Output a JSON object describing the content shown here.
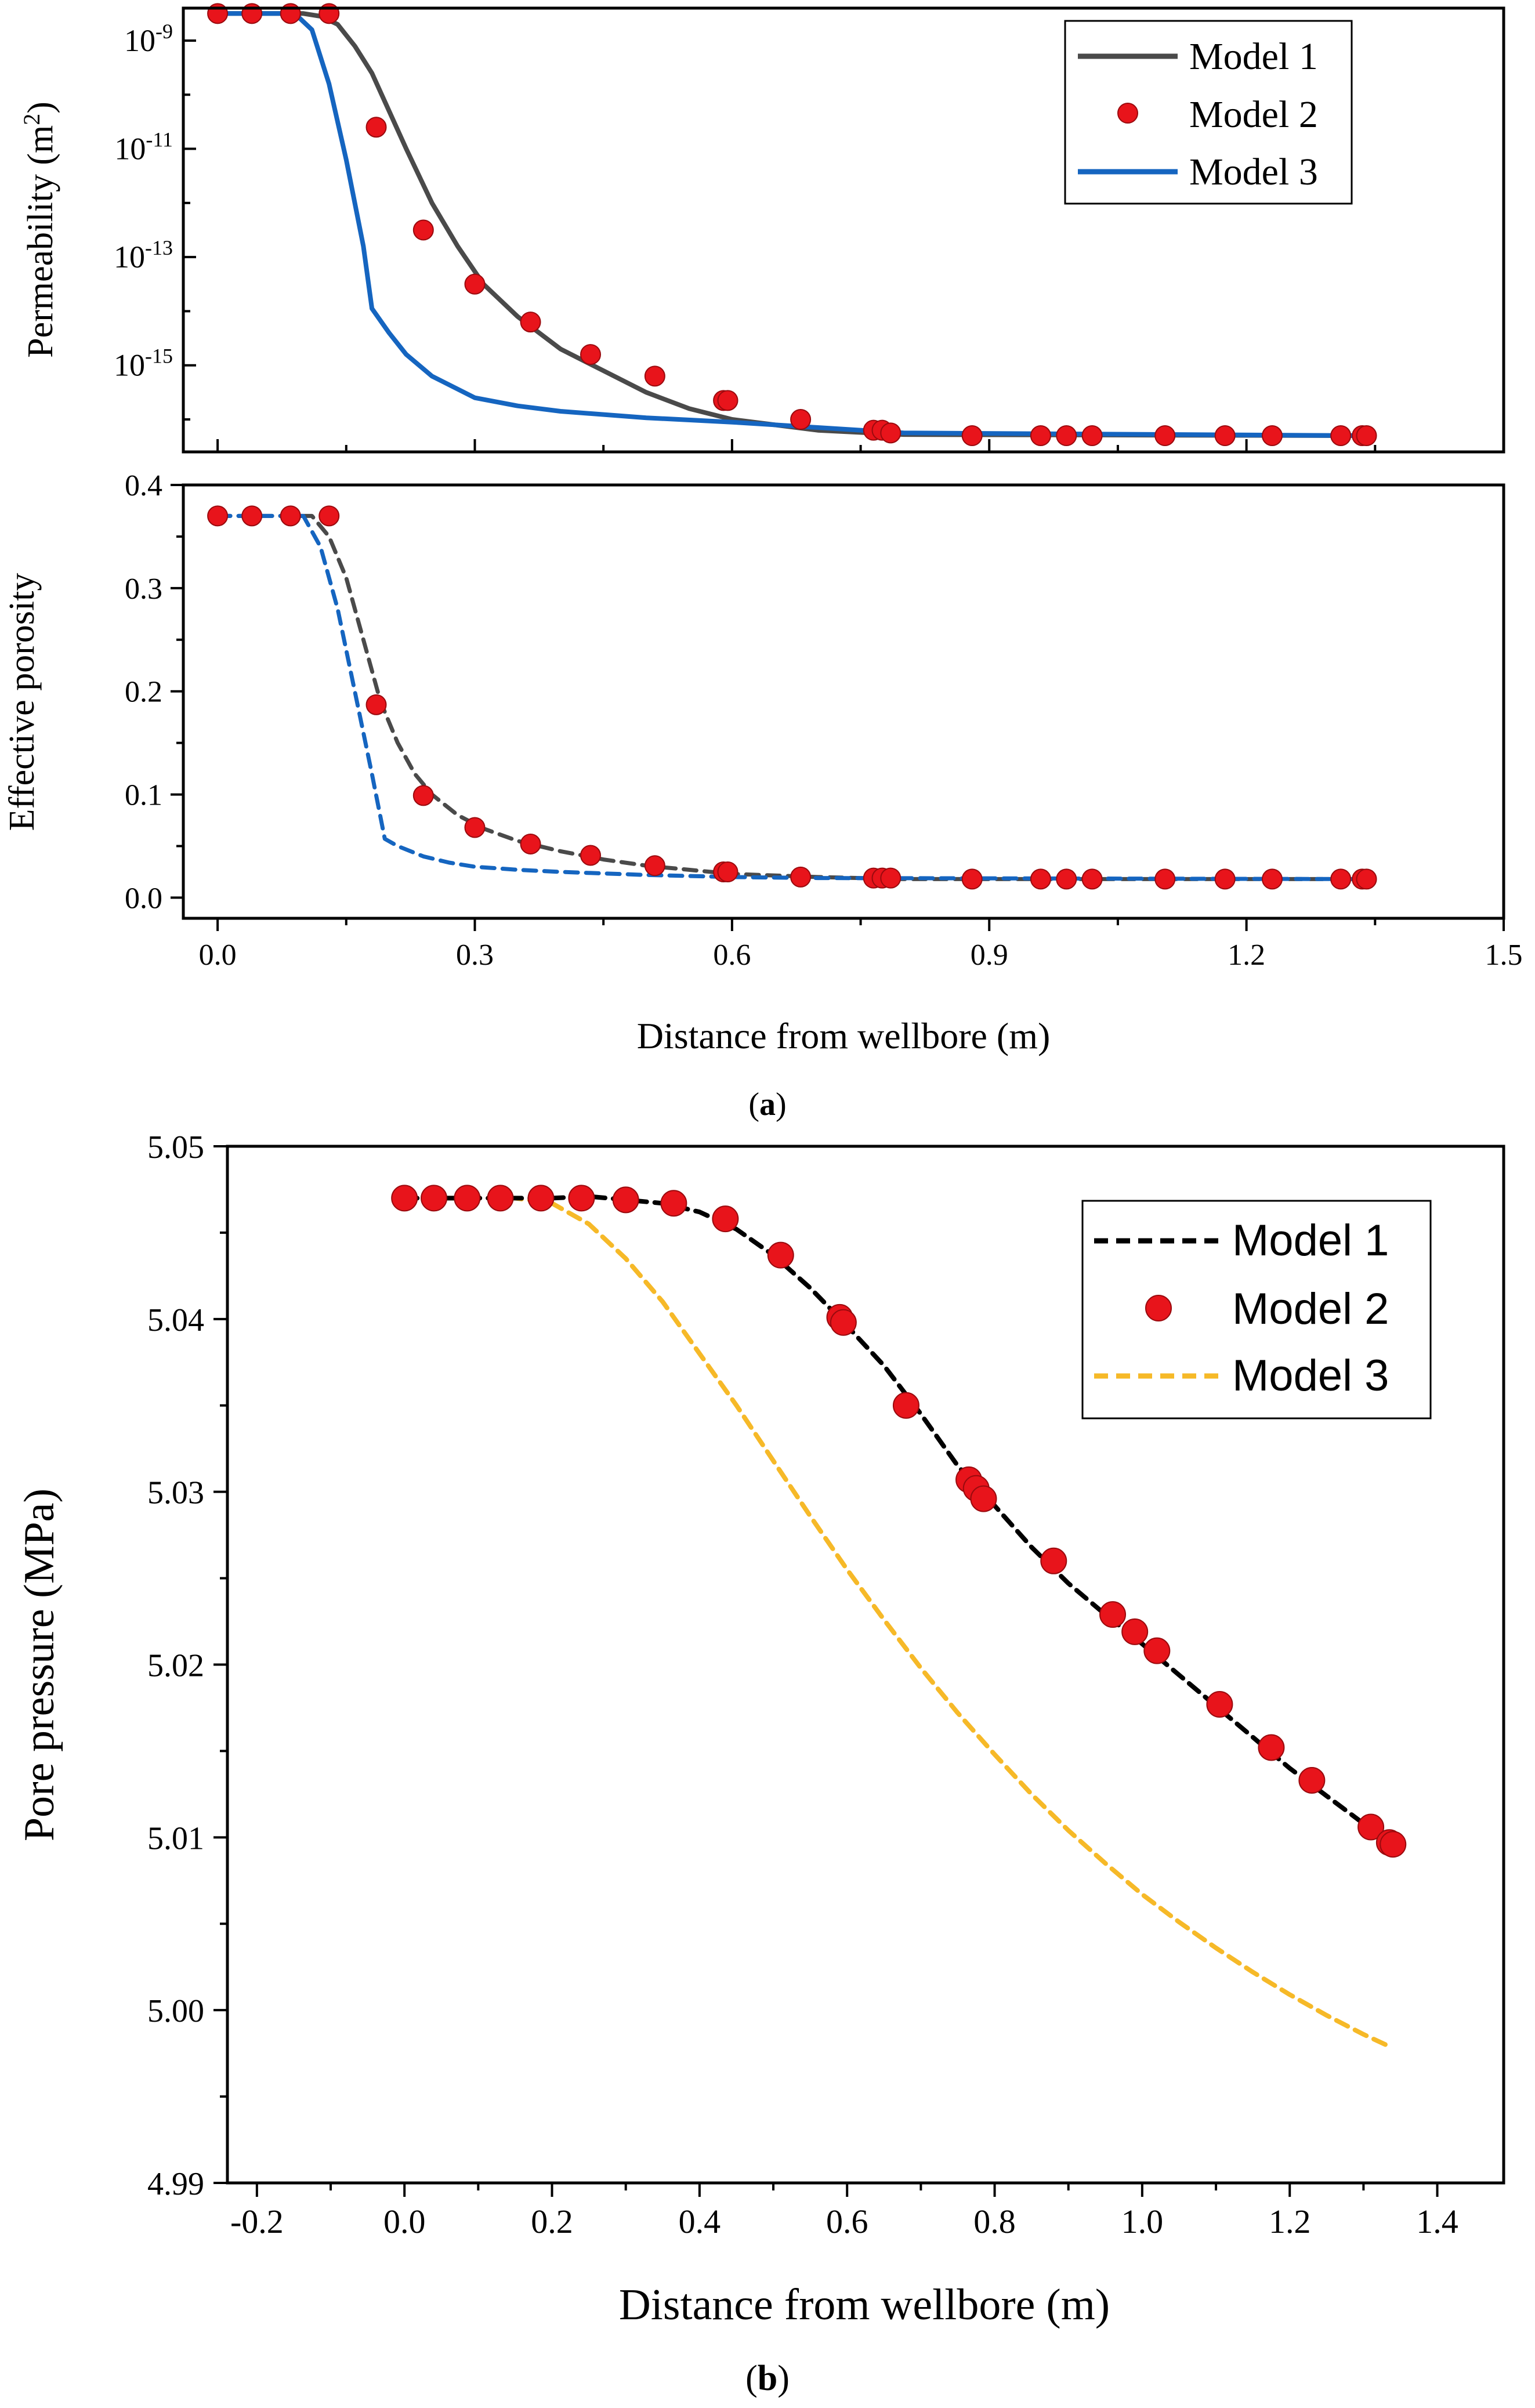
{
  "colors": {
    "model1_solid": "#4a4a4a",
    "model1_dash": "#000000",
    "model2_marker": "#e8141b",
    "model3_blue": "#1565c0",
    "model3_orange": "#f6b928",
    "axis": "#000000"
  },
  "panel_a_label": "(a)",
  "panel_b_label": "(b)",
  "panel_a_xlabel": "Distance from wellbore (m)",
  "chart_data": [
    {
      "id": "a-top",
      "type": "line",
      "title": "",
      "xlabel": "",
      "ylabel_main": "Permeability (m",
      "ylabel_sup": "2",
      "ylabel_end": ")",
      "yscale": "log",
      "xlim": [
        -0.04,
        1.5
      ],
      "ylim_log10": [
        -16.6,
        -8.4
      ],
      "ytick_base": "10",
      "yticks": [
        {
          "base": "10",
          "exp": "-9",
          "value": -9
        },
        {
          "base": "10",
          "exp": "-11",
          "value": -11
        },
        {
          "base": "10",
          "exp": "-13",
          "value": -13
        },
        {
          "base": "10",
          "exp": "-15",
          "value": -15
        }
      ],
      "legend": [
        "Model 1",
        "Model 2",
        "Model 3"
      ],
      "series": [
        {
          "name": "Model 1",
          "style": "solid",
          "x": [
            0,
            0.1,
            0.12,
            0.14,
            0.16,
            0.18,
            0.2,
            0.22,
            0.25,
            0.28,
            0.31,
            0.35,
            0.4,
            0.45,
            0.5,
            0.55,
            0.6,
            0.65,
            0.7,
            0.8,
            1.34
          ],
          "y": [
            -8.5,
            -8.5,
            -8.55,
            -8.7,
            -9.1,
            -9.6,
            -10.3,
            -11.0,
            -12.0,
            -12.8,
            -13.5,
            -14.1,
            -14.7,
            -15.1,
            -15.5,
            -15.8,
            -16.0,
            -16.1,
            -16.2,
            -16.28,
            -16.3
          ]
        },
        {
          "name": "Model 2",
          "style": "markers",
          "x": [
            0,
            0.04,
            0.085,
            0.13,
            0.185,
            0.24,
            0.3,
            0.365,
            0.435,
            0.51,
            0.59,
            0.595,
            0.68,
            0.765,
            0.775,
            0.785,
            0.88,
            0.96,
            0.99,
            1.02,
            1.105,
            1.175,
            1.23,
            1.31,
            1.335,
            1.34
          ],
          "y": [
            -8.5,
            -8.5,
            -8.5,
            -8.5,
            -10.6,
            -12.5,
            -13.5,
            -14.2,
            -14.8,
            -15.2,
            -15.65,
            -15.65,
            -16.0,
            -16.2,
            -16.2,
            -16.25,
            -16.3,
            -16.3,
            -16.3,
            -16.3,
            -16.3,
            -16.3,
            -16.3,
            -16.3,
            -16.3,
            -16.3
          ]
        },
        {
          "name": "Model 3",
          "style": "solid",
          "x": [
            0,
            0.09,
            0.11,
            0.13,
            0.15,
            0.17,
            0.18,
            0.2,
            0.22,
            0.25,
            0.3,
            0.35,
            0.4,
            0.5,
            0.6,
            0.7,
            0.8,
            1.34
          ],
          "y": [
            -8.5,
            -8.5,
            -8.8,
            -9.8,
            -11.2,
            -12.8,
            -13.95,
            -14.4,
            -14.8,
            -15.2,
            -15.6,
            -15.75,
            -15.85,
            -15.97,
            -16.05,
            -16.15,
            -16.25,
            -16.3
          ]
        }
      ]
    },
    {
      "id": "a-bottom",
      "type": "line",
      "title": "",
      "xlabel": "Distance from wellbore (m)",
      "ylabel": "Effective porosity",
      "xlim": [
        -0.04,
        1.5
      ],
      "ylim": [
        -0.02,
        0.4
      ],
      "xticks": [
        0.0,
        0.3,
        0.6,
        0.9,
        1.2,
        1.5
      ],
      "xtick_labels": [
        "0.0",
        "0.3",
        "0.6",
        "0.9",
        "1.2",
        "1.5"
      ],
      "yticks": [
        0.0,
        0.1,
        0.2,
        0.3,
        0.4
      ],
      "ytick_labels": [
        "0.0",
        "0.1",
        "0.2",
        "0.3",
        "0.4"
      ],
      "series": [
        {
          "name": "Model 1",
          "style": "dashed",
          "x": [
            0,
            0.11,
            0.13,
            0.15,
            0.17,
            0.19,
            0.21,
            0.23,
            0.25,
            0.28,
            0.31,
            0.35,
            0.4,
            0.45,
            0.5,
            0.55,
            0.6,
            0.7,
            0.8,
            1.34
          ],
          "y": [
            0.37,
            0.37,
            0.35,
            0.31,
            0.25,
            0.19,
            0.15,
            0.12,
            0.1,
            0.08,
            0.067,
            0.055,
            0.045,
            0.037,
            0.031,
            0.027,
            0.023,
            0.02,
            0.018,
            0.018
          ]
        },
        {
          "name": "Model 2",
          "style": "markers",
          "x": [
            0,
            0.04,
            0.085,
            0.13,
            0.185,
            0.24,
            0.3,
            0.365,
            0.435,
            0.51,
            0.59,
            0.595,
            0.68,
            0.765,
            0.775,
            0.785,
            0.88,
            0.96,
            0.99,
            1.02,
            1.105,
            1.175,
            1.23,
            1.31,
            1.335,
            1.34
          ],
          "y": [
            0.37,
            0.37,
            0.37,
            0.37,
            0.187,
            0.099,
            0.068,
            0.052,
            0.041,
            0.031,
            0.025,
            0.025,
            0.02,
            0.019,
            0.019,
            0.019,
            0.018,
            0.018,
            0.018,
            0.018,
            0.018,
            0.018,
            0.018,
            0.018,
            0.018,
            0.018
          ]
        },
        {
          "name": "Model 3",
          "style": "dashed",
          "x": [
            0,
            0.1,
            0.12,
            0.14,
            0.16,
            0.18,
            0.195,
            0.21,
            0.24,
            0.27,
            0.3,
            0.35,
            0.4,
            0.5,
            0.6,
            0.7,
            1.34
          ],
          "y": [
            0.37,
            0.37,
            0.34,
            0.28,
            0.2,
            0.12,
            0.057,
            0.05,
            0.04,
            0.034,
            0.03,
            0.027,
            0.025,
            0.022,
            0.02,
            0.019,
            0.018
          ]
        }
      ]
    },
    {
      "id": "b",
      "type": "line",
      "title": "",
      "xlabel": "Distance from wellbore (m)",
      "ylabel": "Pore pressure (MPa)",
      "xlim": [
        -0.24,
        1.49
      ],
      "ylim": [
        4.99,
        5.05
      ],
      "xticks": [
        -0.2,
        0.0,
        0.2,
        0.4,
        0.6,
        0.8,
        1.0,
        1.2,
        1.4
      ],
      "xtick_labels": [
        "-0.2",
        "0.0",
        "0.2",
        "0.4",
        "0.6",
        "0.8",
        "1.0",
        "1.2",
        "1.4"
      ],
      "yticks": [
        4.99,
        5.0,
        5.01,
        5.02,
        5.03,
        5.04,
        5.05
      ],
      "ytick_labels": [
        "4.99",
        "5.00",
        "5.01",
        "5.02",
        "5.03",
        "5.04",
        "5.05"
      ],
      "legend": [
        "Model 1",
        "Model 2",
        "Model 3"
      ],
      "series": [
        {
          "name": "Model 1",
          "style": "dashed",
          "x": [
            0,
            0.2,
            0.25,
            0.3,
            0.35,
            0.4,
            0.45,
            0.5,
            0.55,
            0.6,
            0.65,
            0.7,
            0.75,
            0.8,
            0.85,
            0.9,
            0.95,
            1.0,
            1.05,
            1.1,
            1.15,
            1.2,
            1.25,
            1.3,
            1.335
          ],
          "y": [
            5.047,
            5.047,
            5.0471,
            5.0469,
            5.0467,
            5.0462,
            5.0452,
            5.0437,
            5.0418,
            5.0396,
            5.0373,
            5.0345,
            5.0315,
            5.0292,
            5.0268,
            5.0247,
            5.0229,
            5.0212,
            5.0194,
            5.0176,
            5.0158,
            5.014,
            5.0124,
            5.0108,
            5.0097
          ]
        },
        {
          "name": "Model 2",
          "style": "markers",
          "x": [
            0,
            0.04,
            0.085,
            0.13,
            0.185,
            0.24,
            0.3,
            0.365,
            0.435,
            0.51,
            0.59,
            0.595,
            0.68,
            0.765,
            0.775,
            0.785,
            0.88,
            0.96,
            0.99,
            1.02,
            1.105,
            1.175,
            1.23,
            1.31,
            1.335,
            1.34
          ],
          "y": [
            5.047,
            5.047,
            5.047,
            5.047,
            5.047,
            5.047,
            5.0469,
            5.0467,
            5.0458,
            5.0437,
            5.0401,
            5.0398,
            5.035,
            5.0307,
            5.0302,
            5.0296,
            5.026,
            5.0229,
            5.0219,
            5.0208,
            5.0177,
            5.0152,
            5.0133,
            5.0106,
            5.0097,
            5.0096
          ]
        },
        {
          "name": "Model 3",
          "style": "dashed",
          "x": [
            0,
            0.15,
            0.2,
            0.25,
            0.3,
            0.35,
            0.4,
            0.45,
            0.5,
            0.55,
            0.6,
            0.65,
            0.7,
            0.75,
            0.8,
            0.85,
            0.9,
            0.95,
            1.0,
            1.05,
            1.1,
            1.15,
            1.2,
            1.25,
            1.3,
            1.33
          ],
          "y": [
            5.047,
            5.047,
            5.0467,
            5.0455,
            5.0435,
            5.041,
            5.038,
            5.035,
            5.0318,
            5.0286,
            5.0255,
            5.0226,
            5.0198,
            5.0172,
            5.0148,
            5.0125,
            5.0104,
            5.0085,
            5.0067,
            5.0051,
            5.0036,
            5.0022,
            5.0009,
            4.9997,
            4.9986,
            4.998
          ]
        }
      ]
    }
  ]
}
